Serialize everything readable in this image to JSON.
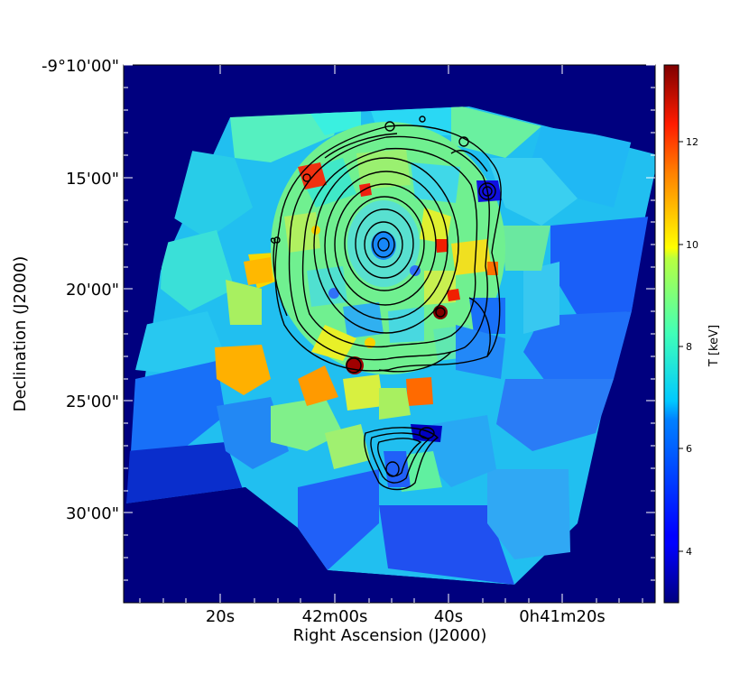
{
  "x_axis": {
    "label": "Right Ascension (J2000)",
    "ticks": [
      "20s",
      "42m00s",
      "40s",
      "0h41m20s"
    ]
  },
  "y_axis": {
    "label": "Declination (J2000)",
    "ticks": [
      "-9°10'00\"",
      "15'00\"",
      "20'00\"",
      "25'00\"",
      "30'00\""
    ]
  },
  "colorbar": {
    "label": "T [keV]",
    "ticks": [
      "4",
      "6",
      "8",
      "10",
      "12"
    ],
    "range": [
      3,
      13.5
    ],
    "colormap": "jet"
  },
  "colors": {
    "background": "#00007f",
    "frame": "#000000"
  }
}
